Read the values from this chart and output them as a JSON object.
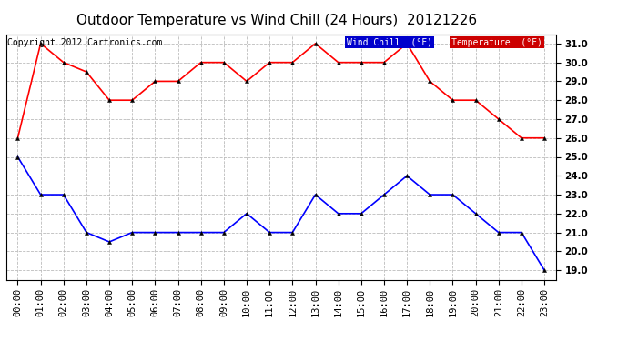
{
  "title": "Outdoor Temperature vs Wind Chill (24 Hours)  20121226",
  "copyright": "Copyright 2012 Cartronics.com",
  "hours": [
    "00:00",
    "01:00",
    "02:00",
    "03:00",
    "04:00",
    "05:00",
    "06:00",
    "07:00",
    "08:00",
    "09:00",
    "10:00",
    "11:00",
    "12:00",
    "13:00",
    "14:00",
    "15:00",
    "16:00",
    "17:00",
    "18:00",
    "19:00",
    "20:00",
    "21:00",
    "22:00",
    "23:00"
  ],
  "temperature": [
    26.0,
    31.0,
    30.0,
    29.5,
    28.0,
    28.0,
    29.0,
    29.0,
    30.0,
    30.0,
    29.0,
    30.0,
    30.0,
    31.0,
    30.0,
    30.0,
    30.0,
    31.0,
    29.0,
    28.0,
    28.0,
    27.0,
    26.0,
    26.0
  ],
  "wind_chill": [
    25.0,
    23.0,
    23.0,
    21.0,
    20.5,
    21.0,
    21.0,
    21.0,
    21.0,
    21.0,
    22.0,
    21.0,
    21.0,
    23.0,
    22.0,
    22.0,
    23.0,
    24.0,
    23.0,
    23.0,
    22.0,
    21.0,
    21.0,
    19.0
  ],
  "temp_color": "#ff0000",
  "wind_chill_color": "#0000ff",
  "ylim_min": 18.5,
  "ylim_max": 31.5,
  "yticks": [
    19.0,
    20.0,
    21.0,
    22.0,
    23.0,
    24.0,
    25.0,
    26.0,
    27.0,
    28.0,
    29.0,
    30.0,
    31.0
  ],
  "bg_color": "#ffffff",
  "grid_color": "#bbbbbb",
  "legend_wind_bg": "#0000cc",
  "legend_temp_bg": "#cc0000",
  "title_fontsize": 11,
  "tick_fontsize": 7.5,
  "copyright_fontsize": 7,
  "marker": "^",
  "marker_size": 3,
  "linewidth": 1.2
}
